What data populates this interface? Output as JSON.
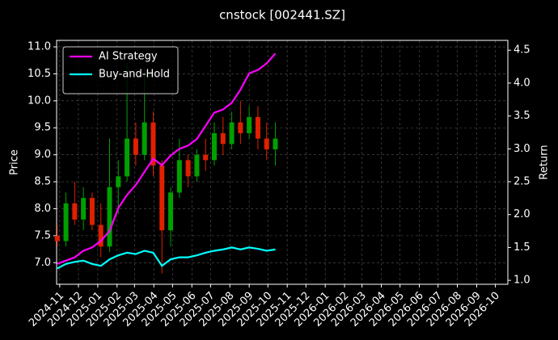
{
  "chart_data": {
    "type": "candlestick",
    "title": "cnstock [002441.SZ]",
    "ylabel": "Price",
    "y2label": "Return",
    "x": [
      "2024-10-28",
      "2024-11-11",
      "2024-11-25",
      "2024-12-09",
      "2024-12-23",
      "2025-01-06",
      "2025-01-20",
      "2025-02-03",
      "2025-02-17",
      "2025-03-03",
      "2025-03-17",
      "2025-03-31",
      "2025-04-14",
      "2025-04-28",
      "2025-05-12",
      "2025-05-26",
      "2025-06-09",
      "2025-06-23",
      "2025-07-07",
      "2025-07-21",
      "2025-08-04",
      "2025-08-18",
      "2025-09-01",
      "2025-09-15",
      "2025-09-29",
      "2025-10-13"
    ],
    "open": [
      7.5,
      7.4,
      8.1,
      7.8,
      8.2,
      7.7,
      7.3,
      8.4,
      8.6,
      9.3,
      9.0,
      9.6,
      8.8,
      7.6,
      8.3,
      8.9,
      8.6,
      9.0,
      8.9,
      9.4,
      9.2,
      9.6,
      9.4,
      9.7,
      9.3,
      9.1
    ],
    "high": [
      7.7,
      8.3,
      8.5,
      8.4,
      8.3,
      8.1,
      9.3,
      8.9,
      10.7,
      9.6,
      10.6,
      9.8,
      8.9,
      8.4,
      9.3,
      9.0,
      9.1,
      9.3,
      9.6,
      9.7,
      9.8,
      10.0,
      9.9,
      9.9,
      9.6,
      9.6
    ],
    "low": [
      7.3,
      7.3,
      7.7,
      7.6,
      7.6,
      7.1,
      7.2,
      7.9,
      8.5,
      8.8,
      8.9,
      8.6,
      6.8,
      7.3,
      8.2,
      8.4,
      8.5,
      8.7,
      8.8,
      9.0,
      9.1,
      9.2,
      9.3,
      9.1,
      8.9,
      8.8
    ],
    "close": [
      7.4,
      8.1,
      7.8,
      8.2,
      7.7,
      7.3,
      8.4,
      8.6,
      9.3,
      9.0,
      9.6,
      8.8,
      7.6,
      8.3,
      8.9,
      8.6,
      9.0,
      8.9,
      9.4,
      9.2,
      9.6,
      9.4,
      9.7,
      9.3,
      9.1,
      9.3
    ],
    "up_color": "#00a000",
    "down_color": "#e02000",
    "series": [
      {
        "name": "AI Strategy",
        "color": "#ff00ff",
        "axis": "y2",
        "values": [
          1.25,
          1.3,
          1.35,
          1.45,
          1.5,
          1.6,
          1.75,
          2.1,
          2.3,
          2.45,
          2.65,
          2.85,
          2.75,
          2.9,
          3.0,
          3.05,
          3.15,
          3.35,
          3.55,
          3.6,
          3.7,
          3.9,
          4.15,
          4.2,
          4.3,
          4.45
        ]
      },
      {
        "name": "Buy-and-Hold",
        "color": "#00ffff",
        "axis": "y2",
        "values": [
          1.18,
          1.25,
          1.28,
          1.3,
          1.25,
          1.22,
          1.32,
          1.38,
          1.42,
          1.4,
          1.45,
          1.42,
          1.22,
          1.32,
          1.35,
          1.35,
          1.38,
          1.42,
          1.45,
          1.47,
          1.5,
          1.47,
          1.5,
          1.48,
          1.45,
          1.47
        ]
      }
    ],
    "xlim": [
      "2024-10-27",
      "2026-10-21"
    ],
    "xticks": [
      "2024-11",
      "2024-12",
      "2025-01",
      "2025-02",
      "2025-03",
      "2025-04",
      "2025-05",
      "2025-06",
      "2025-07",
      "2025-08",
      "2025-09",
      "2025-10",
      "2025-11",
      "2025-12",
      "2026-01",
      "2026-02",
      "2026-03",
      "2026-04",
      "2026-05",
      "2026-06",
      "2026-07",
      "2026-08",
      "2026-09",
      "2026-10"
    ],
    "ylim": [
      6.6,
      11.12
    ],
    "yticks": [
      {
        "value": 7,
        "label": "7.0"
      },
      7.5,
      {
        "value": 8,
        "label": "8.0"
      },
      8.5,
      {
        "value": 9,
        "label": "9.0"
      },
      9.5,
      {
        "value": 10,
        "label": "10.0"
      },
      10.5,
      {
        "value": 11,
        "label": "11.0"
      }
    ],
    "y2lim": [
      0.94,
      4.65
    ],
    "y2ticks": [
      {
        "value": 1,
        "label": "1.0"
      },
      1.5,
      {
        "value": 2,
        "label": "2.0"
      },
      2.5,
      {
        "value": 3,
        "label": "3.0"
      },
      3.5,
      {
        "value": 4,
        "label": "4.0"
      },
      4.5
    ],
    "grid": true,
    "legend": "upper left"
  }
}
